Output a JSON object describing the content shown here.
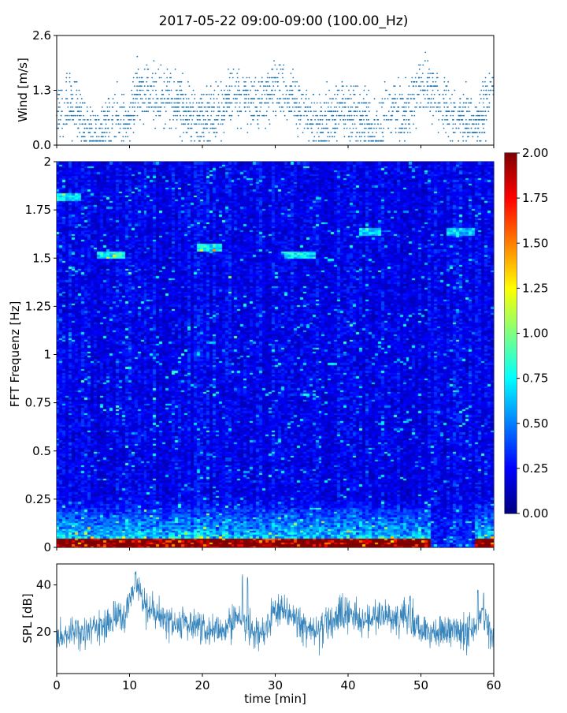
{
  "title": "2017-05-22 09:00-09:00 (100.00_Hz)",
  "chart_data": [
    {
      "id": "wind",
      "type": "scatter",
      "ylabel": "Wind [m/s]",
      "xlim": [
        0,
        60
      ],
      "ylim": [
        0,
        2.6
      ],
      "yticks": [
        0.0,
        1.3,
        2.6
      ],
      "ytick_labels": [
        "0.0",
        "1.3",
        "2.6"
      ],
      "color": "#1f77b4",
      "quantization": 0.1,
      "n_points": 2200,
      "trend": {
        "x": [
          0,
          2,
          4,
          6,
          8,
          10,
          11,
          13,
          15,
          17,
          19,
          21,
          23,
          24,
          26,
          28,
          30,
          32,
          34,
          36,
          38,
          40,
          42,
          44,
          46,
          48,
          50,
          52,
          54,
          56,
          58,
          60
        ],
        "y": [
          0.8,
          1.0,
          0.4,
          0.3,
          0.7,
          0.6,
          1.3,
          1.2,
          1.1,
          1.0,
          0.6,
          0.7,
          0.8,
          1.3,
          1.1,
          0.9,
          1.4,
          1.1,
          0.8,
          0.4,
          0.7,
          0.9,
          0.6,
          0.3,
          1.0,
          0.7,
          1.4,
          1.2,
          0.7,
          0.6,
          0.5,
          1.4
        ]
      }
    },
    {
      "id": "spectrogram",
      "type": "heatmap",
      "ylabel": "FFT Frequenz [Hz]",
      "xlim": [
        0,
        60
      ],
      "ylim": [
        0,
        2
      ],
      "yticks": [
        0,
        0.25,
        0.5,
        0.75,
        1,
        1.25,
        1.5,
        1.75,
        2
      ],
      "ytick_labels": [
        "0",
        "0.25",
        "0.5",
        "0.75",
        "1",
        "1.25",
        "1.5",
        "1.75",
        "2"
      ],
      "colormap": "jet",
      "vmin": 0.0,
      "vmax": 2.0,
      "n_time_bins": 140,
      "n_freq_bins": 200,
      "base_level": 0.22,
      "low_frequency_band": {
        "freq_max": 0.25,
        "strongest_below": 0.05,
        "peak_level": 1.9,
        "fades_after_min": 51.5,
        "returns_at_min": 57.5
      },
      "highlights": [
        {
          "t": [
            5.5,
            9.5
          ],
          "f": [
            1.5,
            1.54
          ],
          "level": 0.6
        },
        {
          "t": [
            19.5,
            22.5
          ],
          "f": [
            1.54,
            1.58
          ],
          "level": 0.55
        },
        {
          "t": [
            31.5,
            35.5
          ],
          "f": [
            1.5,
            1.54
          ],
          "level": 0.55
        },
        {
          "t": [
            41.5,
            44.5
          ],
          "f": [
            1.62,
            1.66
          ],
          "level": 0.5
        },
        {
          "t": [
            53.5,
            57.5
          ],
          "f": [
            1.62,
            1.66
          ],
          "level": 0.45
        },
        {
          "t": [
            0,
            3.5
          ],
          "f": [
            1.8,
            1.84
          ],
          "level": 0.5
        }
      ],
      "colorbar": {
        "ticks": [
          0.0,
          0.25,
          0.5,
          0.75,
          1.0,
          1.25,
          1.5,
          1.75,
          2.0
        ],
        "tick_labels": [
          "0.00",
          "0.25",
          "0.50",
          "0.75",
          "1.00",
          "1.25",
          "1.50",
          "1.75",
          "2.00"
        ]
      }
    },
    {
      "id": "spl",
      "type": "line",
      "ylabel": "SPL [dB]",
      "xlabel": "time [min]",
      "xlim": [
        0,
        60
      ],
      "ylim": [
        2,
        49
      ],
      "yticks": [
        20,
        40
      ],
      "ytick_labels": [
        "20",
        "40"
      ],
      "xticks": [
        0,
        10,
        20,
        30,
        40,
        50,
        60
      ],
      "xtick_labels": [
        "0",
        "10",
        "20",
        "30",
        "40",
        "50",
        "60"
      ],
      "color": "#1f77b4",
      "n_points": 1400,
      "trend": {
        "x": [
          0,
          2,
          4,
          6,
          8,
          9.5,
          10.5,
          11.5,
          12.5,
          14,
          16,
          18,
          20,
          22,
          24,
          25.5,
          27,
          28.5,
          30,
          32,
          34,
          36,
          38,
          40,
          42,
          44,
          46,
          48,
          50,
          52,
          54,
          56,
          57.5,
          58.5,
          60
        ],
        "y": [
          17,
          20,
          19,
          22,
          24,
          28,
          40,
          38,
          30,
          26,
          24,
          23,
          20,
          19,
          23,
          27,
          18,
          19,
          30,
          26,
          22,
          21,
          25,
          28,
          24,
          27,
          25,
          26,
          21,
          20,
          20,
          19,
          20,
          30,
          15
        ]
      },
      "spikes": [
        {
          "x": 25.5,
          "y": 46
        },
        {
          "x": 26.2,
          "y": 44
        },
        {
          "x": 57.8,
          "y": 38
        },
        {
          "x": 48.5,
          "y": 36
        },
        {
          "x": 10.8,
          "y": 46
        }
      ]
    }
  ]
}
